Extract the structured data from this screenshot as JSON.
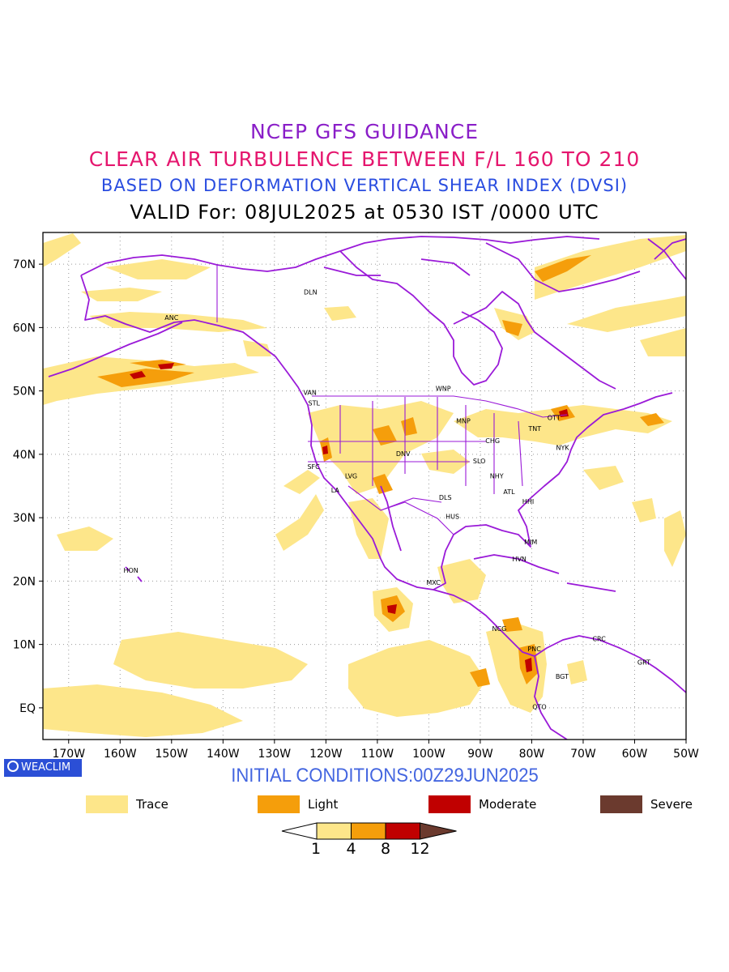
{
  "titles": {
    "line1": "NCEP GFS GUIDANCE",
    "line2": "CLEAR AIR TURBULENCE BETWEEN F/L 160 TO 210",
    "line3": "BASED ON DEFORMATION VERTICAL SHEAR INDEX (DVSI)",
    "line4": "VALID For: 08JUL2025 at 0530 IST /0000 UTC"
  },
  "initial_conditions": "INITIAL CONDITIONS:00Z29JUN2025",
  "badge": "WEACLIM",
  "map": {
    "projection": "cylindrical",
    "lon_range": [
      -175,
      -50
    ],
    "lat_range": [
      -5,
      75
    ],
    "grid": true,
    "lon_labels": [
      "170W",
      "160W",
      "150W",
      "140W",
      "130W",
      "120W",
      "110W",
      "100W",
      "90W",
      "80W",
      "70W",
      "60W",
      "50W"
    ],
    "lat_labels": [
      "70N",
      "60N",
      "50N",
      "40N",
      "30N",
      "20N",
      "10N",
      "EQ"
    ],
    "colors": {
      "boundary": "#9a1ad8",
      "trace": "#fde68a",
      "light": "#f59e0b",
      "moderate": "#c00000",
      "severe": "#6b3a2e"
    },
    "stations": [
      {
        "code": "ANC",
        "lon": -150,
        "lat": 61.2
      },
      {
        "code": "DLN",
        "lon": -123,
        "lat": 65.2
      },
      {
        "code": "VAN",
        "lon": -123.1,
        "lat": 49.4
      },
      {
        "code": "STL",
        "lon": -122.3,
        "lat": 47.7
      },
      {
        "code": "WNP",
        "lon": -97.2,
        "lat": 50
      },
      {
        "code": "MNP",
        "lon": -93.3,
        "lat": 44.9
      },
      {
        "code": "OTT",
        "lon": -75.7,
        "lat": 45.4
      },
      {
        "code": "TNT",
        "lon": -79.4,
        "lat": 43.7
      },
      {
        "code": "CHG",
        "lon": -87.6,
        "lat": 41.8
      },
      {
        "code": "NYK",
        "lon": -74,
        "lat": 40.7
      },
      {
        "code": "DNV",
        "lon": -105,
        "lat": 39.7
      },
      {
        "code": "SFC",
        "lon": -122.4,
        "lat": 37.7
      },
      {
        "code": "SLO",
        "lon": -90.2,
        "lat": 38.6
      },
      {
        "code": "LVG",
        "lon": -115.1,
        "lat": 36.2
      },
      {
        "code": "NHY",
        "lon": -86.8,
        "lat": 36.2
      },
      {
        "code": "LA",
        "lon": -118.2,
        "lat": 34
      },
      {
        "code": "ATL",
        "lon": -84.4,
        "lat": 33.7
      },
      {
        "code": "DLS",
        "lon": -96.8,
        "lat": 32.8
      },
      {
        "code": "HHI",
        "lon": -80.7,
        "lat": 32.2
      },
      {
        "code": "HUS",
        "lon": -95.4,
        "lat": 29.8
      },
      {
        "code": "MIM",
        "lon": -80.2,
        "lat": 25.8
      },
      {
        "code": "HVN",
        "lon": -82.4,
        "lat": 23.1
      },
      {
        "code": "HON",
        "lon": -157.9,
        "lat": 21.3
      },
      {
        "code": "MXC",
        "lon": -99.1,
        "lat": 19.4
      },
      {
        "code": "NCG",
        "lon": -86.3,
        "lat": 12.1
      },
      {
        "code": "CRC",
        "lon": -66.9,
        "lat": 10.5
      },
      {
        "code": "PNC",
        "lon": -79.5,
        "lat": 8.9
      },
      {
        "code": "GRT",
        "lon": -58.2,
        "lat": 6.8
      },
      {
        "code": "BGT",
        "lon": -74.1,
        "lat": 4.6
      },
      {
        "code": "QTO",
        "lon": -78.5,
        "lat": -0.2
      }
    ]
  },
  "legend": [
    {
      "label": "Trace",
      "color": "#fde68a"
    },
    {
      "label": "Light",
      "color": "#f59e0b"
    },
    {
      "label": "Moderate",
      "color": "#c00000"
    },
    {
      "label": "Severe",
      "color": "#6b3a2e"
    }
  ],
  "colorbar": {
    "ticks": [
      "1",
      "4",
      "8",
      "12"
    ],
    "colors": [
      "#ffffff",
      "#fde68a",
      "#f59e0b",
      "#c00000",
      "#6b3a2e"
    ]
  }
}
